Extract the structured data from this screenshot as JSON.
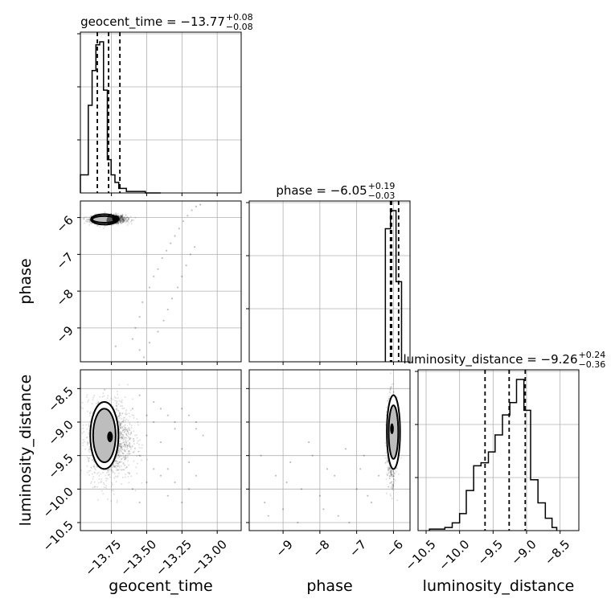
{
  "chart_data": {
    "type": "scatter",
    "subtype": "corner-plot",
    "parameters": [
      "geocent_time",
      "phase",
      "luminosity_distance"
    ],
    "titles": [
      {
        "param": "geocent_time",
        "text": "geocent_time = −13.77",
        "sup": "+0.08",
        "sub": "−0.08"
      },
      {
        "param": "phase",
        "text": "phase = −6.05",
        "sup": "+0.19",
        "sub": "−0.03"
      },
      {
        "param": "luminosity_distance",
        "text": "luminosity_distance = −9.26",
        "sup": "+0.24",
        "sub": "−0.36"
      }
    ],
    "axis_labels": {
      "bottom": [
        "geocent_time",
        "phase",
        "luminosity_distance"
      ],
      "left": [
        "phase",
        "luminosity_distance"
      ]
    },
    "ranges": {
      "geocent_time": [
        -13.97,
        -12.83
      ],
      "phase": [
        -9.92,
        -5.55
      ],
      "luminosity_distance": [
        -10.62,
        -8.22
      ]
    },
    "ticks": {
      "geocent_time": [
        {
          "v": -13.75,
          "label": "−13.75"
        },
        {
          "v": -13.5,
          "label": "−13.50"
        },
        {
          "v": -13.25,
          "label": "−13.25"
        },
        {
          "v": -13.0,
          "label": "−13.00"
        }
      ],
      "phase": [
        {
          "v": -9,
          "label": "−9"
        },
        {
          "v": -8,
          "label": "−8"
        },
        {
          "v": -7,
          "label": "−7"
        },
        {
          "v": -6,
          "label": "−6"
        }
      ],
      "luminosity_distance": [
        {
          "v": -10.5,
          "label": "−10.5"
        },
        {
          "v": -10.0,
          "label": "−10.0"
        },
        {
          "v": -9.5,
          "label": "−9.5"
        },
        {
          "v": -9.0,
          "label": "−9.0"
        },
        {
          "v": -8.5,
          "label": "−8.5"
        }
      ]
    },
    "quantiles": {
      "geocent_time": [
        -13.85,
        -13.77,
        -13.69
      ],
      "phase": [
        -6.08,
        -6.05,
        -5.86
      ],
      "luminosity_distance": [
        -9.62,
        -9.26,
        -9.02
      ]
    },
    "histograms": {
      "geocent_time": {
        "edges": [
          -13.97,
          -13.914,
          -13.887,
          -13.86,
          -13.833,
          -13.806,
          -13.779,
          -13.752,
          -13.725,
          -13.698,
          -13.671,
          -13.644,
          -13.617,
          -13.59,
          -13.563,
          -13.536,
          -13.509,
          -13.482,
          -13.455,
          -13.428,
          -13.401
        ],
        "counts": [
          0.12,
          0.58,
          0.81,
          0.98,
          1.0,
          0.68,
          0.22,
          0.12,
          0.07,
          0.03,
          0.03,
          0.01,
          0.01,
          0.01,
          0.01,
          0.01,
          0.0,
          0.0,
          0.0,
          0.0
        ]
      },
      "phase": {
        "edges": [
          -6.22,
          -6.08,
          -5.93,
          -5.78
        ],
        "counts": [
          0.88,
          1.0,
          0.53
        ]
      },
      "luminosity_distance": {
        "edges": [
          -10.45,
          -10.22,
          -10.11,
          -10.0,
          -9.9,
          -9.79,
          -9.68,
          -9.57,
          -9.47,
          -9.36,
          -9.25,
          -9.15,
          -9.04,
          -8.94,
          -8.83,
          -8.72,
          -8.62,
          -8.55
        ],
        "counts": [
          0.01,
          0.02,
          0.05,
          0.11,
          0.26,
          0.42,
          0.44,
          0.51,
          0.62,
          0.75,
          0.83,
          0.98,
          0.78,
          0.33,
          0.18,
          0.08,
          0.02
        ]
      }
    },
    "scatter_panels": [
      {
        "x": "geocent_time",
        "y": "phase",
        "core": {
          "cx": -13.77,
          "cy": -6.05,
          "sx": 0.06,
          "sy": 0.06,
          "n": 1400
        },
        "contour_shapes": [
          {
            "cx": -13.8,
            "cy": -6.05,
            "rx": 0.095,
            "ry": 0.14,
            "fill": "#ffffff"
          },
          {
            "cx": -13.8,
            "cy": -6.05,
            "rx": 0.085,
            "ry": 0.09,
            "fill": "#bdbdbd"
          },
          {
            "cx": -13.76,
            "cy": -6.08,
            "rx": 0.025,
            "ry": 0.12,
            "fill": "#555555"
          },
          {
            "cx": -13.72,
            "cy": -6.03,
            "rx": 0.025,
            "ry": 0.09,
            "fill": "#000000"
          }
        ],
        "contour_rings": [
          {
            "cx": -13.8,
            "cy": -6.05,
            "rx": 0.095,
            "ry": 0.14
          },
          {
            "cx": -13.8,
            "cy": -6.05,
            "rx": 0.085,
            "ry": 0.09
          }
        ],
        "outliers": [
          [
            -13.72,
            -9.5
          ],
          [
            -13.6,
            -9.3
          ],
          [
            -13.58,
            -9.0
          ],
          [
            -13.55,
            -8.7
          ],
          [
            -13.53,
            -8.3
          ],
          [
            -13.48,
            -7.9
          ],
          [
            -13.45,
            -7.6
          ],
          [
            -13.42,
            -7.4
          ],
          [
            -13.39,
            -7.1
          ],
          [
            -13.36,
            -6.9
          ],
          [
            -13.33,
            -6.7
          ],
          [
            -13.3,
            -6.5
          ],
          [
            -13.27,
            -6.3
          ],
          [
            -13.24,
            -6.1
          ],
          [
            -13.21,
            -5.95
          ],
          [
            -13.18,
            -5.8
          ],
          [
            -13.15,
            -5.7
          ],
          [
            -13.12,
            -5.65
          ],
          [
            -13.55,
            -9.6
          ],
          [
            -13.52,
            -9.8
          ],
          [
            -13.48,
            -9.4
          ],
          [
            -13.42,
            -9.1
          ],
          [
            -13.38,
            -8.8
          ],
          [
            -13.35,
            -8.5
          ],
          [
            -13.32,
            -8.2
          ],
          [
            -13.28,
            -7.9
          ],
          [
            -13.25,
            -7.6
          ],
          [
            -13.22,
            -7.3
          ],
          [
            -13.19,
            -7.0
          ],
          [
            -13.16,
            -6.8
          ]
        ]
      },
      {
        "x": "geocent_time",
        "y": "luminosity_distance",
        "core": {
          "cx": -13.76,
          "cy": -9.26,
          "sx": 0.08,
          "sy": 0.3,
          "n": 1400
        },
        "contour_shapes": [
          {
            "cx": -13.8,
            "cy": -9.2,
            "rx": 0.1,
            "ry": 0.5,
            "fill": "#ffffff"
          },
          {
            "cx": -13.8,
            "cy": -9.2,
            "rx": 0.08,
            "ry": 0.4,
            "fill": "#bdbdbd"
          },
          {
            "cx": -13.76,
            "cy": -9.22,
            "rx": 0.02,
            "ry": 0.08,
            "fill": "#000000"
          }
        ],
        "contour_rings": [
          {
            "cx": -13.8,
            "cy": -9.2,
            "rx": 0.1,
            "ry": 0.5
          },
          {
            "cx": -13.8,
            "cy": -9.2,
            "rx": 0.08,
            "ry": 0.4
          }
        ],
        "outliers": [
          [
            -13.55,
            -9.5
          ],
          [
            -13.5,
            -9.2
          ],
          [
            -13.45,
            -9.0
          ],
          [
            -13.4,
            -9.3
          ],
          [
            -13.35,
            -9.7
          ],
          [
            -13.3,
            -9.1
          ],
          [
            -13.25,
            -9.4
          ],
          [
            -13.2,
            -9.6
          ],
          [
            -13.15,
            -9.0
          ],
          [
            -13.1,
            -9.2
          ],
          [
            -13.6,
            -10.0
          ],
          [
            -13.55,
            -10.2
          ],
          [
            -13.5,
            -9.9
          ],
          [
            -13.45,
            -9.7
          ],
          [
            -13.4,
            -9.8
          ],
          [
            -13.35,
            -10.1
          ],
          [
            -13.3,
            -9.9
          ],
          [
            -13.25,
            -10.2
          ],
          [
            -13.2,
            -10.0
          ],
          [
            -13.15,
            -9.8
          ],
          [
            -13.6,
            -8.8
          ],
          [
            -13.55,
            -8.6
          ],
          [
            -13.5,
            -8.9
          ],
          [
            -13.45,
            -8.7
          ],
          [
            -13.4,
            -8.8
          ],
          [
            -13.35,
            -8.9
          ],
          [
            -13.3,
            -9.0
          ],
          [
            -13.25,
            -8.8
          ],
          [
            -13.2,
            -8.9
          ],
          [
            -13.15,
            -9.1
          ]
        ]
      },
      {
        "x": "phase",
        "y": "luminosity_distance",
        "core": {
          "cx": -6.05,
          "cy": -9.26,
          "sx": 0.06,
          "sy": 0.3,
          "n": 1100
        },
        "contour_shapes": [
          {
            "cx": -6.0,
            "cy": -9.15,
            "rx": 0.18,
            "ry": 0.55,
            "fill": "#ffffff"
          },
          {
            "cx": -6.0,
            "cy": -9.15,
            "rx": 0.13,
            "ry": 0.4,
            "fill": "#bdbdbd"
          },
          {
            "cx": -6.04,
            "cy": -9.1,
            "rx": 0.05,
            "ry": 0.08,
            "fill": "#000000"
          }
        ],
        "contour_rings": [
          {
            "cx": -6.0,
            "cy": -9.15,
            "rx": 0.18,
            "ry": 0.55
          },
          {
            "cx": -6.0,
            "cy": -9.15,
            "rx": 0.13,
            "ry": 0.4
          }
        ],
        "outliers": [
          [
            -9.5,
            -10.2
          ],
          [
            -9.2,
            -9.8
          ],
          [
            -9.0,
            -10.3
          ],
          [
            -8.8,
            -9.6
          ],
          [
            -8.5,
            -10.0
          ],
          [
            -8.3,
            -9.3
          ],
          [
            -8.0,
            -10.1
          ],
          [
            -7.8,
            -9.7
          ],
          [
            -7.5,
            -10.4
          ],
          [
            -7.3,
            -9.4
          ],
          [
            -7.0,
            -10.0
          ],
          [
            -6.8,
            -9.5
          ],
          [
            -6.6,
            -10.2
          ],
          [
            -6.4,
            -9.8
          ],
          [
            -9.6,
            -9.5
          ],
          [
            -9.4,
            -10.4
          ],
          [
            -8.9,
            -9.9
          ],
          [
            -8.6,
            -10.5
          ],
          [
            -8.2,
            -9.5
          ],
          [
            -7.9,
            -10.3
          ],
          [
            -7.6,
            -9.8
          ],
          [
            -7.2,
            -10.5
          ],
          [
            -6.9,
            -9.7
          ],
          [
            -6.7,
            -10.1
          ]
        ]
      }
    ],
    "grid": true,
    "legend": "none"
  }
}
